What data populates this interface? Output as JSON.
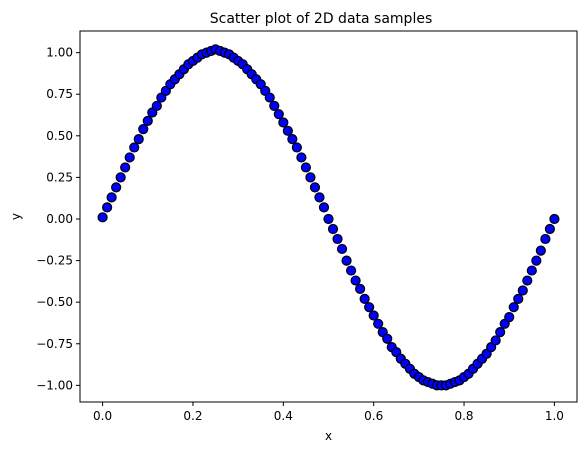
{
  "chart_data": {
    "type": "scatter",
    "title": "Scatter plot of 2D data samples",
    "xlabel": "x",
    "ylabel": "y",
    "xlim": [
      -0.05,
      1.05
    ],
    "ylim": [
      -1.1,
      1.13
    ],
    "xticks": [
      0.0,
      0.2,
      0.4,
      0.6,
      0.8,
      1.0
    ],
    "xtick_labels": [
      "0.0",
      "0.2",
      "0.4",
      "0.6",
      "0.8",
      "1.0"
    ],
    "yticks": [
      -1.0,
      -0.75,
      -0.5,
      -0.25,
      0.0,
      0.25,
      0.5,
      0.75,
      1.0
    ],
    "ytick_labels": [
      "−1.00",
      "−0.75",
      "−0.50",
      "−0.25",
      "0.00",
      "0.25",
      "0.50",
      "0.75",
      "1.00"
    ],
    "grid": false,
    "series": [
      {
        "marker_color": "#0000ff",
        "edge_color": "#000000",
        "x": [
          0.0,
          0.01,
          0.02,
          0.03,
          0.04,
          0.05,
          0.06,
          0.07,
          0.08,
          0.09,
          0.1,
          0.11,
          0.12,
          0.13,
          0.14,
          0.15,
          0.16,
          0.17,
          0.18,
          0.19,
          0.2,
          0.21,
          0.22,
          0.23,
          0.24,
          0.25,
          0.26,
          0.27,
          0.28,
          0.29,
          0.3,
          0.31,
          0.32,
          0.33,
          0.34,
          0.35,
          0.36,
          0.37,
          0.38,
          0.39,
          0.4,
          0.41,
          0.42,
          0.43,
          0.44,
          0.45,
          0.46,
          0.47,
          0.48,
          0.49,
          0.5,
          0.51,
          0.52,
          0.53,
          0.54,
          0.55,
          0.56,
          0.57,
          0.58,
          0.59,
          0.6,
          0.61,
          0.62,
          0.63,
          0.64,
          0.65,
          0.66,
          0.67,
          0.68,
          0.69,
          0.7,
          0.71,
          0.72,
          0.73,
          0.74,
          0.75,
          0.76,
          0.77,
          0.78,
          0.79,
          0.8,
          0.81,
          0.82,
          0.83,
          0.84,
          0.85,
          0.86,
          0.87,
          0.88,
          0.89,
          0.9,
          0.91,
          0.92,
          0.93,
          0.94,
          0.95,
          0.96,
          0.97,
          0.98,
          0.99,
          1.0
        ],
        "y": [
          0.01,
          0.07,
          0.13,
          0.19,
          0.25,
          0.31,
          0.37,
          0.43,
          0.48,
          0.54,
          0.59,
          0.64,
          0.68,
          0.73,
          0.77,
          0.81,
          0.84,
          0.87,
          0.9,
          0.93,
          0.95,
          0.97,
          0.99,
          1.0,
          1.01,
          1.02,
          1.01,
          1.0,
          0.99,
          0.97,
          0.95,
          0.93,
          0.9,
          0.87,
          0.84,
          0.81,
          0.77,
          0.73,
          0.68,
          0.63,
          0.58,
          0.53,
          0.48,
          0.43,
          0.37,
          0.31,
          0.25,
          0.19,
          0.13,
          0.07,
          0.0,
          -0.06,
          -0.12,
          -0.18,
          -0.25,
          -0.31,
          -0.37,
          -0.42,
          -0.48,
          -0.53,
          -0.58,
          -0.63,
          -0.68,
          -0.72,
          -0.77,
          -0.8,
          -0.84,
          -0.87,
          -0.9,
          -0.93,
          -0.95,
          -0.97,
          -0.98,
          -0.99,
          -1.0,
          -1.0,
          -1.0,
          -0.99,
          -0.98,
          -0.97,
          -0.95,
          -0.93,
          -0.9,
          -0.87,
          -0.84,
          -0.81,
          -0.77,
          -0.73,
          -0.68,
          -0.63,
          -0.59,
          -0.53,
          -0.48,
          -0.43,
          -0.37,
          -0.31,
          -0.25,
          -0.19,
          -0.12,
          -0.06,
          0.0
        ]
      }
    ]
  }
}
